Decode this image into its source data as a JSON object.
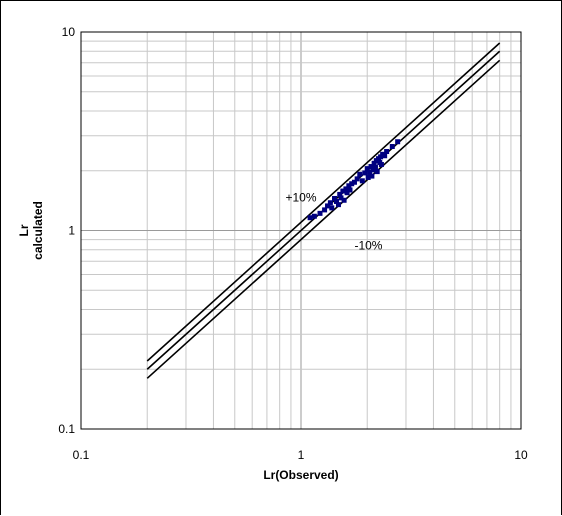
{
  "chart_data": {
    "type": "scatter",
    "title": "",
    "xlabel": "Lr(Observed)",
    "ylabel_line1": "Lr",
    "ylabel_line2": "calculated",
    "xscale": "log",
    "yscale": "log",
    "xlim": [
      0.1,
      10
    ],
    "ylim": [
      0.1,
      10
    ],
    "grid": true,
    "x_ticks": [
      {
        "value": 0.1,
        "label": "0.1"
      },
      {
        "value": 1,
        "label": "1"
      },
      {
        "value": 10,
        "label": "10"
      }
    ],
    "y_ticks": [
      {
        "value": 0.1,
        "label": "0.1"
      },
      {
        "value": 1,
        "label": "1"
      },
      {
        "value": 10,
        "label": "10"
      }
    ],
    "reference_lines": [
      {
        "factor": 1.1,
        "x_range": [
          0.2,
          8
        ]
      },
      {
        "factor": 1.0,
        "x_range": [
          0.2,
          8
        ]
      },
      {
        "factor": 0.9,
        "x_range": [
          0.2,
          8
        ]
      }
    ],
    "annotations": [
      {
        "text": "+10%",
        "x": 0.85,
        "y": 1.4
      },
      {
        "text": "-10%",
        "x": 1.75,
        "y": 0.8
      }
    ],
    "marker_color": "#000080",
    "points": [
      [
        1.1,
        1.16
      ],
      [
        1.15,
        1.18
      ],
      [
        1.22,
        1.22
      ],
      [
        1.28,
        1.27
      ],
      [
        1.32,
        1.33
      ],
      [
        1.36,
        1.38
      ],
      [
        1.38,
        1.3
      ],
      [
        1.42,
        1.45
      ],
      [
        1.45,
        1.4
      ],
      [
        1.48,
        1.35
      ],
      [
        1.5,
        1.52
      ],
      [
        1.52,
        1.46
      ],
      [
        1.55,
        1.58
      ],
      [
        1.57,
        1.42
      ],
      [
        1.6,
        1.62
      ],
      [
        1.62,
        1.55
      ],
      [
        1.65,
        1.68
      ],
      [
        1.67,
        1.6
      ],
      [
        1.7,
        1.72
      ],
      [
        1.75,
        1.75
      ],
      [
        1.8,
        1.82
      ],
      [
        1.85,
        1.92
      ],
      [
        1.9,
        1.78
      ],
      [
        1.95,
        1.95
      ],
      [
        2.0,
        2.05
      ],
      [
        2.02,
        1.85
      ],
      [
        2.05,
        1.96
      ],
      [
        2.08,
        2.1
      ],
      [
        2.1,
        1.88
      ],
      [
        2.12,
        2.02
      ],
      [
        2.15,
        2.18
      ],
      [
        2.18,
        2.08
      ],
      [
        2.2,
        2.25
      ],
      [
        2.22,
        1.98
      ],
      [
        2.25,
        2.3
      ],
      [
        2.28,
        2.2
      ],
      [
        2.3,
        2.35
      ],
      [
        2.32,
        2.15
      ],
      [
        2.35,
        2.42
      ],
      [
        2.4,
        2.38
      ],
      [
        2.45,
        2.5
      ],
      [
        2.6,
        2.65
      ],
      [
        2.75,
        2.8
      ]
    ]
  }
}
